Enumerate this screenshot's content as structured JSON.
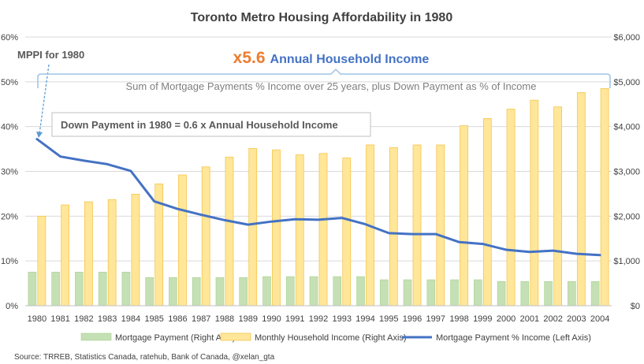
{
  "colors": {
    "mortgage_bar": "#c5e0b4",
    "mortgage_bar_edge": "#a9d18e",
    "income_bar": "#ffe699",
    "income_bar_edge": "#f4c64e",
    "line": "#4472c4",
    "grid": "#d9d9d9",
    "axis_text": "#404040",
    "x5_orange": "#ed7d31",
    "brace": "#9dc3e6",
    "callout_border": "#bfbfbf"
  },
  "annotations": {
    "mppi_label": "MPPI for 1980",
    "multiplier": "x5.6",
    "annual_income": "Annual Household Income",
    "sum_note": "Sum of Mortgage Payments % Income over 25 years, plus Down Payment as % of Income",
    "down_payment": "Down Payment in 1980 = 0.6 x Annual Household Income"
  },
  "source": "Source: TRREB, Statistics Canada, ratehub, Bank of Canada, @xelan_gta",
  "chart_data": {
    "type": "bar",
    "title": "Toronto Metro Housing Affordability in 1980",
    "categories": [
      "1980",
      "1981",
      "1982",
      "1983",
      "1984",
      "1985",
      "1986",
      "1987",
      "1988",
      "1989",
      "1990",
      "1991",
      "1992",
      "1993",
      "1994",
      "1995",
      "1996",
      "1997",
      "1998",
      "1999",
      "2000",
      "2001",
      "2002",
      "2003",
      "2004"
    ],
    "left_axis": {
      "min": 0,
      "max": 60,
      "ticks": [
        "0%",
        "10%",
        "20%",
        "30%",
        "40%",
        "50%",
        "60%"
      ]
    },
    "right_axis": {
      "min": 0,
      "max": 6000,
      "ticks": [
        "$0",
        "$1,000",
        "$2,000",
        "$3,000",
        "$4,000",
        "$5,000",
        "$6,000"
      ]
    },
    "series": [
      {
        "name": "Mortgage Payment (Right Axis)",
        "kind": "bar",
        "axis": "right",
        "values": [
          750,
          750,
          750,
          750,
          750,
          630,
          630,
          630,
          630,
          630,
          650,
          650,
          650,
          650,
          650,
          580,
          580,
          580,
          580,
          580,
          540,
          540,
          540,
          540,
          540
        ]
      },
      {
        "name": "Monthly Household Income (Right Axis)",
        "kind": "bar",
        "axis": "right",
        "values": [
          2000,
          2250,
          2320,
          2370,
          2490,
          2720,
          2920,
          3100,
          3320,
          3510,
          3480,
          3370,
          3400,
          3300,
          3590,
          3530,
          3590,
          3590,
          4020,
          4180,
          4390,
          4590,
          4440,
          4760,
          4850
        ]
      },
      {
        "name": "Mortgage Payment % Income (Left Axis)",
        "kind": "line",
        "axis": "left",
        "values": [
          37.2,
          33.3,
          32.4,
          31.6,
          30.1,
          23.3,
          21.6,
          20.3,
          19.1,
          18.1,
          18.8,
          19.3,
          19.2,
          19.6,
          18.2,
          16.2,
          16.0,
          16.0,
          14.2,
          13.8,
          12.5,
          12.0,
          12.3,
          11.6,
          11.3
        ]
      }
    ],
    "legend_position": "bottom",
    "grid": true
  }
}
